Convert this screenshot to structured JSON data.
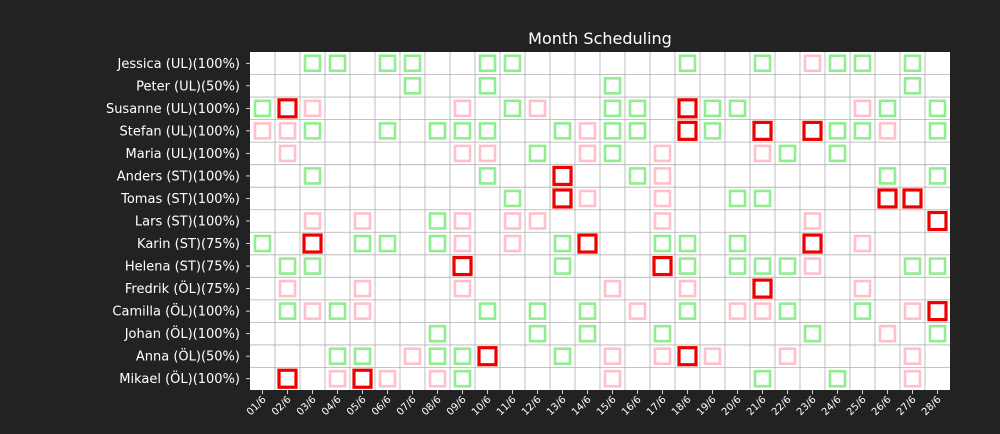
{
  "chart_data": {
    "type": "heatmap",
    "title": "Month Scheduling",
    "rows": [
      "Jessica (UL)(100%)",
      "Peter (UL)(50%)",
      "Susanne (UL)(100%)",
      "Stefan (UL)(100%)",
      "Maria (UL)(100%)",
      "Anders (ST)(100%)",
      "Tomas (ST)(100%)",
      "Lars (ST)(100%)",
      "Karin (ST)(75%)",
      "Helena (ST)(75%)",
      "Fredrik (ÖL)(75%)",
      "Camilla (ÖL)(100%)",
      "Johan (ÖL)(100%)",
      "Anna (ÖL)(50%)",
      "Mikael (ÖL)(100%)"
    ],
    "columns": [
      "01/6",
      "02/6",
      "03/6",
      "04/6",
      "05/6",
      "06/6",
      "07/6",
      "08/6",
      "09/6",
      "10/6",
      "11/6",
      "12/6",
      "13/6",
      "14/6",
      "15/6",
      "16/6",
      "17/6",
      "18/6",
      "19/6",
      "20/6",
      "21/6",
      "22/6",
      "23/6",
      "24/6",
      "25/6",
      "26/6",
      "27/6",
      "28/6"
    ],
    "legend_colors": {
      "G": "#90ee90",
      "P": "#ffc0cb",
      "R": "#ee0000"
    },
    "grid": true,
    "cells": [
      "..GG.GG..GG......G..G.PGG.G.",
      "......G..G....G...........G.",
      "GRP.....P.GP..GG.RGG....PG.G",
      "PPG..G.GGG..GPGG.RG.R.RGGP.G",
      ".P......PP.G.PG.P...PG.G....",
      "..G......G..R..GP........G.G",
      "..........G.RP..P..GG....RR.",
      "..P.P..GP.PP....P.....P....R",
      "G.R.GG.GP.P.GR..GG.G..R.P...",
      ".GG.....R...G...RG.GGGP...GG",
      ".P..P...P.....P..P..R...P...",
      ".GPGP....G.G.G.P.G.PPG..G.PR",
      ".......G...G.G..G.....G..P.G",
      "...GG.PGGR..G.P.PRP..P....P.",
      ".R.PRP.PG.....P.....G..G..P."
    ]
  }
}
